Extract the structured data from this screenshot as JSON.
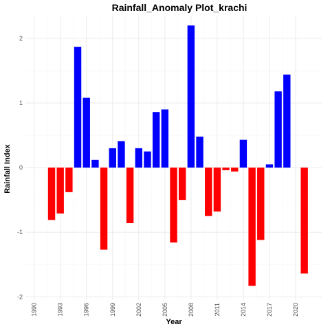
{
  "chart_data": {
    "type": "bar",
    "title": "Rainfall_Anomaly Plot_krachi",
    "xlabel": "Year",
    "ylabel": "Rainfall Index",
    "xlim": [
      1989,
      2023
    ],
    "ylim": [
      -2.05,
      2.35
    ],
    "x_ticks": [
      1990,
      1993,
      1996,
      1999,
      2002,
      2005,
      2008,
      2011,
      2014,
      2017,
      2020
    ],
    "y_ticks": [
      -2,
      -1,
      0,
      1,
      2
    ],
    "grid": true,
    "positive_color": "#0000ff",
    "negative_color": "#ff0000",
    "x": [
      1992,
      1993,
      1994,
      1995,
      1996,
      1997,
      1998,
      1999,
      2000,
      2001,
      2002,
      2003,
      2004,
      2005,
      2006,
      2007,
      2008,
      2009,
      2010,
      2011,
      2012,
      2013,
      2014,
      2015,
      2016,
      2017,
      2018,
      2019,
      2021
    ],
    "values": [
      -0.81,
      -0.71,
      -0.38,
      1.87,
      1.08,
      0.12,
      -1.27,
      0.3,
      0.41,
      -0.86,
      0.3,
      0.25,
      0.86,
      0.9,
      -1.16,
      -0.5,
      2.2,
      0.48,
      -0.75,
      -0.68,
      -0.04,
      -0.06,
      0.43,
      -1.83,
      -1.12,
      0.05,
      1.18,
      1.44,
      -1.64
    ]
  }
}
